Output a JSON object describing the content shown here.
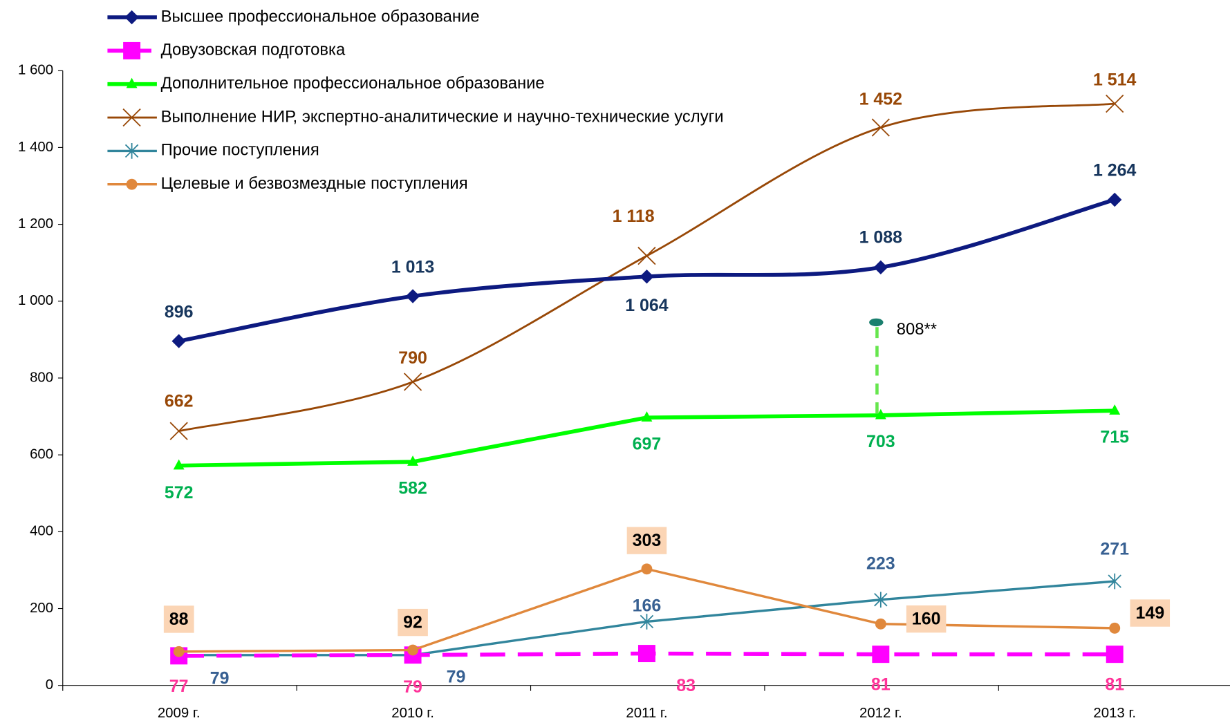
{
  "chart_data": {
    "type": "line",
    "categories": [
      "2009 г.",
      "2010 г.",
      "2011 г.",
      "2012 г.",
      "2013 г."
    ],
    "ylim": [
      0,
      1600
    ],
    "yticks": [
      0,
      200,
      400,
      600,
      800,
      {
        "value": 1000,
        "label": "1 000"
      },
      {
        "value": 1200,
        "label": "1 200"
      },
      {
        "value": 1400,
        "label": "1 400"
      },
      {
        "value": 1600,
        "label": "1 600"
      }
    ],
    "series": [
      {
        "name": "Высшее профессиональное образование",
        "color": "#0d1a80",
        "label_color": "#17365d",
        "marker": "diamond",
        "smooth": true,
        "values": [
          896,
          1013,
          1064,
          1088,
          1264
        ],
        "value_labels": [
          "896",
          "1 013",
          "1 064",
          "1 088",
          "1 264"
        ]
      },
      {
        "name": "Довузовская подготовка",
        "color": "#ff00ff",
        "label_color": "#ff3399",
        "marker": "square",
        "dashed": true,
        "values": [
          77,
          79,
          83,
          81,
          81
        ]
      },
      {
        "name": "Дополнительное профессиональное образование",
        "color": "#00ff00",
        "label_color": "#00b050",
        "marker": "triangle",
        "values": [
          572,
          582,
          697,
          703,
          715
        ]
      },
      {
        "name": "Выполнение НИР, экспертно-аналитические и научно-технические услуги",
        "color": "#984807",
        "label_color": "#984807",
        "marker": "x",
        "smooth": true,
        "values": [
          662,
          790,
          1118,
          1452,
          1514
        ],
        "value_labels": [
          "662",
          "790",
          "1 118",
          "1 452",
          "1 514"
        ]
      },
      {
        "name": "Прочие поступления",
        "color": "#31859c",
        "label_color": "#376092",
        "marker": "star",
        "values": [
          79,
          79,
          166,
          223,
          271
        ]
      },
      {
        "name": "Целевые и безвозмездные поступления",
        "color": "#e0883c",
        "label_color": "#000000",
        "label_box": "#fbd5b5",
        "marker": "circle",
        "values": [
          88,
          92,
          303,
          160,
          149
        ]
      }
    ],
    "annotation": "808**"
  }
}
